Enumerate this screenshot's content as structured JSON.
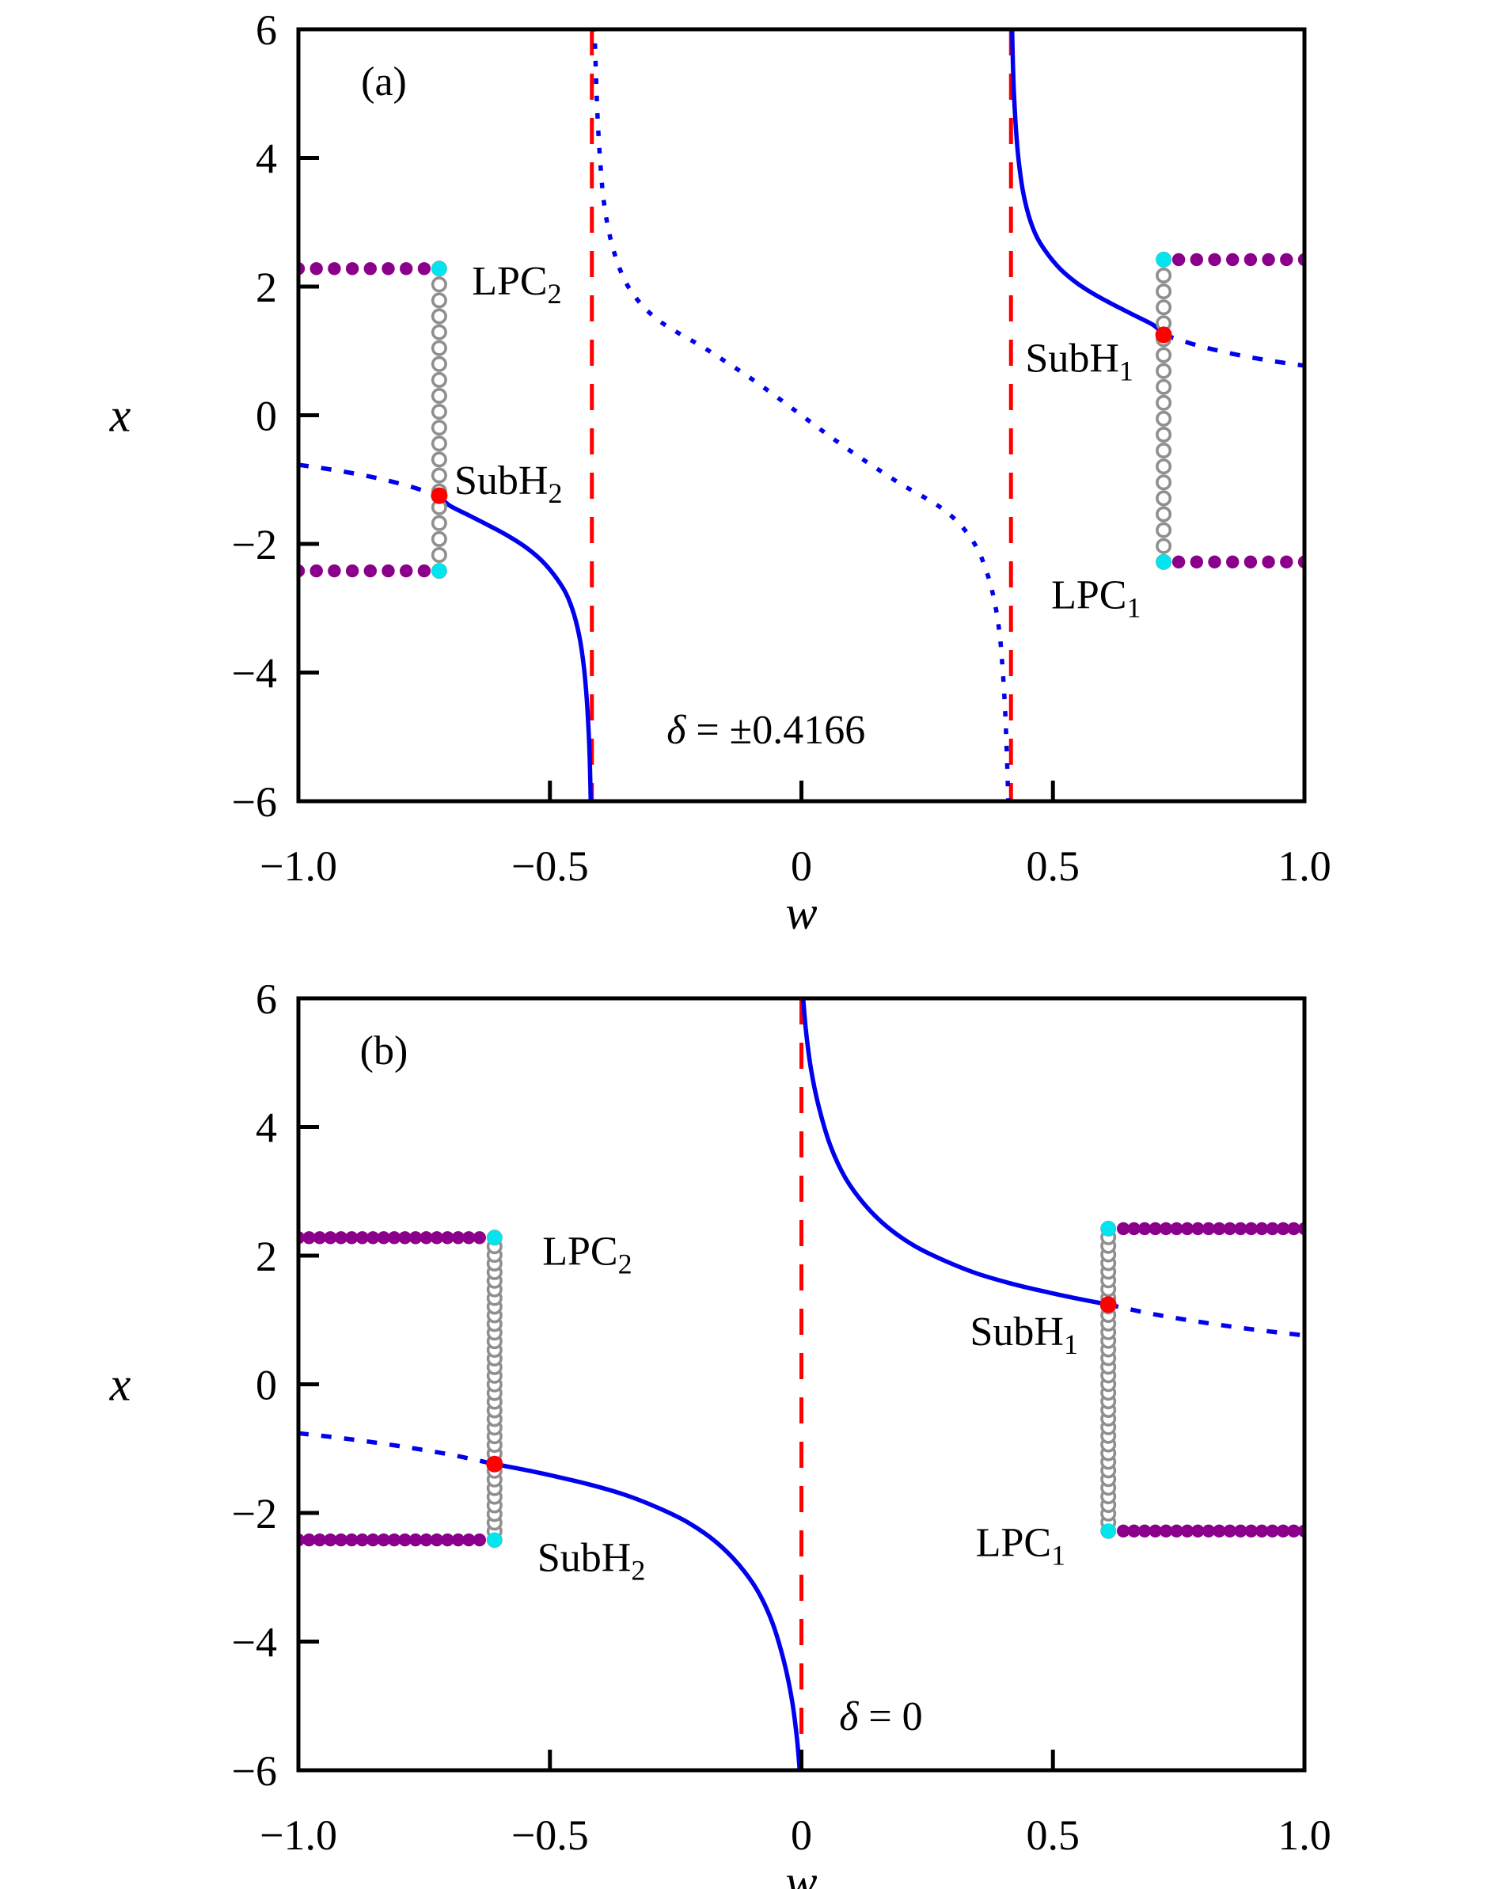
{
  "figure": {
    "background": "#FFFFFF",
    "colors": {
      "branch_blue": "#0000EE",
      "asymptote_red": "#FF0000",
      "subh_point_red": "#FF0000",
      "lpc_point_cyan": "#00E5EE",
      "stable_cycle_purple": "#8B008B",
      "unstable_cycle_gray": "#8F8F8F",
      "axis_black": "#000000"
    }
  },
  "chart_data": [
    {
      "type": "line",
      "panel_label": {
        "text": "(a)",
        "w": -0.83,
        "x": 5.2
      },
      "annotation": {
        "var": "δ",
        "rest": " = ±0.4166",
        "w": -0.268,
        "x": -4.88,
        "anchor": "start"
      },
      "xlabel": "w",
      "ylabel": "x",
      "xlim": [
        -1.0,
        1.0
      ],
      "ylim": [
        -6,
        6
      ],
      "xticks": [
        -1.0,
        -0.5,
        0,
        0.5,
        1.0
      ],
      "xtick_labels": [
        "−1.0",
        "−0.5",
        "0",
        "0.5",
        "1.0"
      ],
      "yticks": [
        6,
        4,
        2,
        0,
        -2,
        -4,
        -6
      ],
      "ytick_labels": [
        "6",
        "4",
        "2",
        "0",
        "−2",
        "−4",
        "−6"
      ],
      "grid": false,
      "legend": null,
      "asymptotes_w": [
        -0.4166,
        0.4166
      ],
      "equilibrium_branches": [
        {
          "style": "dashed",
          "points": [
            [
              -1.0,
              -0.77
            ],
            [
              -0.93,
              -0.85
            ],
            [
              -0.86,
              -0.95
            ],
            [
              -0.79,
              -1.08
            ],
            [
              -0.72,
              -1.25
            ]
          ]
        },
        {
          "style": "solid",
          "points": [
            [
              -0.72,
              -1.25
            ],
            [
              -0.7,
              -1.4
            ],
            [
              -0.66,
              -1.56
            ],
            [
              -0.62,
              -1.72
            ],
            [
              -0.58,
              -1.89
            ],
            [
              -0.545,
              -2.07
            ],
            [
              -0.515,
              -2.27
            ],
            [
              -0.49,
              -2.5
            ],
            [
              -0.468,
              -2.77
            ],
            [
              -0.452,
              -3.1
            ],
            [
              -0.44,
              -3.5
            ],
            [
              -0.432,
              -3.95
            ],
            [
              -0.4265,
              -4.45
            ],
            [
              -0.4225,
              -5.0
            ],
            [
              -0.4203,
              -5.5
            ],
            [
              -0.4188,
              -6.05
            ]
          ]
        },
        {
          "style": "dotted",
          "points": [
            [
              -0.4115,
              6.05
            ],
            [
              -0.4085,
              5.3
            ],
            [
              -0.405,
              4.6
            ],
            [
              -0.4,
              3.95
            ],
            [
              -0.394,
              3.4
            ],
            [
              -0.384,
              2.9
            ],
            [
              -0.369,
              2.45
            ],
            [
              -0.348,
              2.05
            ],
            [
              -0.318,
              1.72
            ],
            [
              -0.283,
              1.47
            ],
            [
              -0.245,
              1.28
            ],
            [
              -0.2,
              1.08
            ],
            [
              -0.15,
              0.83
            ],
            [
              -0.1,
              0.57
            ],
            [
              -0.05,
              0.29
            ],
            [
              0.0,
              0.0
            ],
            [
              0.05,
              -0.29
            ],
            [
              0.1,
              -0.57
            ],
            [
              0.15,
              -0.83
            ],
            [
              0.2,
              -1.08
            ],
            [
              0.245,
              -1.28
            ],
            [
              0.283,
              -1.47
            ],
            [
              0.318,
              -1.72
            ],
            [
              0.348,
              -2.05
            ],
            [
              0.369,
              -2.45
            ],
            [
              0.384,
              -2.9
            ],
            [
              0.394,
              -3.4
            ],
            [
              0.4,
              -3.95
            ],
            [
              0.405,
              -4.6
            ],
            [
              0.4085,
              -5.3
            ],
            [
              0.4115,
              -6.05
            ]
          ]
        },
        {
          "style": "solid",
          "points": [
            [
              0.4188,
              6.05
            ],
            [
              0.4203,
              5.5
            ],
            [
              0.4225,
              5.0
            ],
            [
              0.4265,
              4.45
            ],
            [
              0.432,
              3.95
            ],
            [
              0.44,
              3.5
            ],
            [
              0.452,
              3.1
            ],
            [
              0.468,
              2.77
            ],
            [
              0.49,
              2.5
            ],
            [
              0.515,
              2.27
            ],
            [
              0.545,
              2.07
            ],
            [
              0.58,
              1.89
            ],
            [
              0.62,
              1.72
            ],
            [
              0.66,
              1.56
            ],
            [
              0.7,
              1.4
            ],
            [
              0.72,
              1.25
            ]
          ]
        },
        {
          "style": "dashed",
          "points": [
            [
              0.72,
              1.25
            ],
            [
              0.79,
              1.08
            ],
            [
              0.86,
              0.95
            ],
            [
              0.93,
              0.85
            ],
            [
              1.0,
              0.77
            ]
          ]
        }
      ],
      "unstable_cycle_columns": [
        {
          "w": -0.72,
          "x_from": -2.42,
          "x_to": 2.28,
          "n": 20
        },
        {
          "w": 0.72,
          "x_from": -2.28,
          "x_to": 2.42,
          "n": 20
        }
      ],
      "stable_cycle_rows": [
        {
          "x": 2.28,
          "w_from": -1.0,
          "w_to": -0.75,
          "n": 8
        },
        {
          "x": -2.42,
          "w_from": -1.0,
          "w_to": -0.75,
          "n": 8
        },
        {
          "x": 2.42,
          "w_from": 0.75,
          "w_to": 1.0,
          "n": 8
        },
        {
          "x": -2.28,
          "w_from": 0.75,
          "w_to": 1.0,
          "n": 8
        }
      ],
      "subh_points": [
        {
          "w": -0.72,
          "x": -1.25
        },
        {
          "w": 0.72,
          "x": 1.25
        }
      ],
      "lpc_points": [
        {
          "w": -0.72,
          "x": 2.28
        },
        {
          "w": -0.72,
          "x": -2.42
        },
        {
          "w": 0.72,
          "x": 2.42
        },
        {
          "w": 0.72,
          "x": -2.28
        }
      ],
      "point_labels": [
        {
          "base": "LPC",
          "sub": "2",
          "w": -0.655,
          "x": 2.1,
          "anchor": "start"
        },
        {
          "base": "SubH",
          "sub": "2",
          "w": -0.69,
          "x": -1.0,
          "anchor": "start"
        },
        {
          "base": "SubH",
          "sub": "1",
          "w": 0.66,
          "x": 0.9,
          "anchor": "end"
        },
        {
          "base": "LPC",
          "sub": "1",
          "w": 0.675,
          "x": -2.78,
          "anchor": "end"
        }
      ]
    },
    {
      "type": "line",
      "panel_label": {
        "text": "(b)",
        "w": -0.83,
        "x": 5.2
      },
      "annotation": {
        "var": "δ",
        "rest": " = 0",
        "w": 0.075,
        "x": -5.15,
        "anchor": "start"
      },
      "xlabel": "w",
      "ylabel": "x",
      "xlim": [
        -1.0,
        1.0
      ],
      "ylim": [
        -6,
        6
      ],
      "xticks": [
        -1.0,
        -0.5,
        0,
        0.5,
        1.0
      ],
      "xtick_labels": [
        "−1.0",
        "−0.5",
        "0",
        "0.5",
        "1.0"
      ],
      "yticks": [
        6,
        4,
        2,
        0,
        -2,
        -4,
        -6
      ],
      "ytick_labels": [
        "6",
        "4",
        "2",
        "0",
        "−2",
        "−4",
        "−6"
      ],
      "grid": false,
      "legend": null,
      "asymptotes_w": [
        0.0
      ],
      "equilibrium_branches": [
        {
          "style": "dashed",
          "points": [
            [
              -1.0,
              -0.76
            ],
            [
              -0.9,
              -0.85
            ],
            [
              -0.8,
              -0.96
            ],
            [
              -0.7,
              -1.09
            ],
            [
              -0.61,
              -1.24
            ]
          ]
        },
        {
          "style": "solid",
          "points": [
            [
              -0.61,
              -1.24
            ],
            [
              -0.55,
              -1.33
            ],
            [
              -0.49,
              -1.43
            ],
            [
              -0.42,
              -1.56
            ],
            [
              -0.35,
              -1.72
            ],
            [
              -0.285,
              -1.92
            ],
            [
              -0.225,
              -2.15
            ],
            [
              -0.17,
              -2.45
            ],
            [
              -0.125,
              -2.8
            ],
            [
              -0.088,
              -3.2
            ],
            [
              -0.058,
              -3.7
            ],
            [
              -0.035,
              -4.3
            ],
            [
              -0.019,
              -4.9
            ],
            [
              -0.009,
              -5.5
            ],
            [
              -0.003,
              -6.05
            ]
          ]
        },
        {
          "style": "solid",
          "points": [
            [
              0.003,
              6.05
            ],
            [
              0.009,
              5.5
            ],
            [
              0.019,
              4.9
            ],
            [
              0.035,
              4.3
            ],
            [
              0.058,
              3.7
            ],
            [
              0.088,
              3.2
            ],
            [
              0.125,
              2.8
            ],
            [
              0.17,
              2.45
            ],
            [
              0.225,
              2.15
            ],
            [
              0.285,
              1.92
            ],
            [
              0.35,
              1.72
            ],
            [
              0.42,
              1.56
            ],
            [
              0.49,
              1.43
            ],
            [
              0.55,
              1.33
            ],
            [
              0.61,
              1.24
            ]
          ]
        },
        {
          "style": "dashed",
          "points": [
            [
              0.61,
              1.24
            ],
            [
              0.7,
              1.09
            ],
            [
              0.8,
              0.96
            ],
            [
              0.9,
              0.85
            ],
            [
              1.0,
              0.76
            ]
          ]
        }
      ],
      "unstable_cycle_columns": [
        {
          "w": -0.61,
          "x_from": -2.42,
          "x_to": 2.28,
          "n": 36
        },
        {
          "w": 0.61,
          "x_from": -2.28,
          "x_to": 2.42,
          "n": 36
        }
      ],
      "stable_cycle_rows": [
        {
          "x": 2.28,
          "w_from": -1.0,
          "w_to": -0.64,
          "n": 18
        },
        {
          "x": -2.42,
          "w_from": -1.0,
          "w_to": -0.64,
          "n": 18
        },
        {
          "x": 2.42,
          "w_from": 0.64,
          "w_to": 1.0,
          "n": 18
        },
        {
          "x": -2.28,
          "w_from": 0.64,
          "w_to": 1.0,
          "n": 18
        }
      ],
      "subh_points": [
        {
          "w": -0.61,
          "x": -1.24
        },
        {
          "w": 0.61,
          "x": 1.24
        }
      ],
      "lpc_points": [
        {
          "w": -0.61,
          "x": 2.28
        },
        {
          "w": -0.61,
          "x": -2.42
        },
        {
          "w": 0.61,
          "x": 2.42
        },
        {
          "w": 0.61,
          "x": -2.28
        }
      ],
      "point_labels": [
        {
          "base": "LPC",
          "sub": "2",
          "w": -0.515,
          "x": 2.08,
          "anchor": "start"
        },
        {
          "base": "SubH",
          "sub": "2",
          "w": -0.525,
          "x": -2.68,
          "anchor": "start"
        },
        {
          "base": "SubH",
          "sub": "1",
          "w": 0.55,
          "x": 0.83,
          "anchor": "end"
        },
        {
          "base": "LPC",
          "sub": "1",
          "w": 0.525,
          "x": -2.45,
          "anchor": "end"
        }
      ]
    }
  ]
}
